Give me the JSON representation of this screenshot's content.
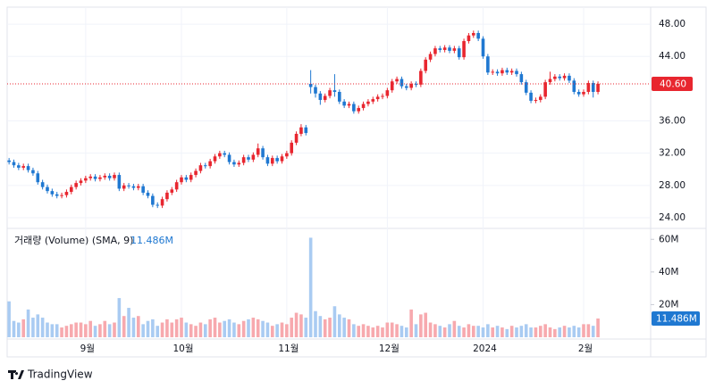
{
  "brand": "TradingView",
  "chart_data": {
    "type": "candlestick",
    "xlim": [
      -0.4,
      134
    ],
    "xticks": [
      {
        "value": 16,
        "label": "9월"
      },
      {
        "value": 36,
        "label": "10월"
      },
      {
        "value": 58,
        "label": "11월"
      },
      {
        "value": 79,
        "label": "12월"
      },
      {
        "value": 99,
        "label": "2024"
      },
      {
        "value": 120,
        "label": "2월"
      }
    ],
    "ylim": [
      22.67,
      50.11
    ],
    "yticks": [
      {
        "value": 24,
        "label": "24.00"
      },
      {
        "value": 28,
        "label": "28.00"
      },
      {
        "value": 32,
        "label": "32.00"
      },
      {
        "value": 36,
        "label": "36.00"
      },
      {
        "value": 44,
        "label": "44.00"
      },
      {
        "value": 48,
        "label": "48.00"
      }
    ],
    "up_color": "#e8262f",
    "down_color": "#1f78d1",
    "open": [
      31.1,
      30.9,
      30.5,
      30.2,
      30.4,
      29.9,
      29.5,
      28.4,
      27.8,
      27.3,
      26.9,
      26.7,
      26.8,
      27.2,
      27.8,
      28.3,
      28.6,
      28.9,
      29.1,
      28.8,
      29.0,
      29.2,
      28.9,
      29.3,
      27.6,
      28.0,
      27.9,
      27.7,
      27.9,
      27.1,
      26.7,
      25.6,
      25.5,
      26.3,
      27.1,
      27.5,
      28.4,
      29.0,
      28.7,
      29.3,
      29.8,
      30.5,
      30.4,
      31.0,
      31.6,
      32.0,
      31.8,
      30.9,
      30.6,
      30.8,
      31.5,
      31.2,
      31.8,
      32.6,
      31.5,
      30.7,
      31.4,
      31.0,
      31.6,
      32.0,
      33.3,
      34.4,
      35.2,
      40.6,
      40.2,
      39.4,
      38.6,
      39.1,
      39.8,
      39.6,
      38.4,
      37.9,
      38.1,
      37.2,
      37.6,
      38.1,
      38.4,
      38.7,
      39.0,
      39.1,
      39.8,
      40.9,
      41.2,
      40.3,
      40.1,
      40.6,
      40.5,
      42.2,
      43.6,
      44.3,
      45.0,
      44.8,
      45.1,
      44.7,
      45.0,
      43.9,
      45.9,
      46.6,
      46.9,
      46.2,
      44.0,
      42.0,
      42.1,
      41.9,
      42.3,
      42.0,
      42.2,
      41.8,
      40.8,
      39.5,
      38.5,
      38.6,
      39.0,
      40.8,
      41.2,
      41.5,
      41.3,
      41.6,
      41.0,
      39.6,
      39.3,
      39.6,
      40.7,
      39.6
    ],
    "high": [
      31.4,
      31.2,
      30.8,
      30.7,
      30.7,
      30.2,
      29.8,
      28.7,
      28.1,
      27.6,
      27.2,
      27.1,
      27.5,
      28.1,
      28.6,
      28.9,
      29.2,
      29.4,
      29.4,
      29.3,
      29.5,
      29.5,
      29.6,
      29.6,
      28.3,
      28.3,
      28.2,
      28.2,
      28.2,
      27.4,
      27.0,
      25.9,
      26.6,
      27.4,
      27.8,
      28.7,
      29.3,
      29.3,
      29.6,
      30.1,
      30.8,
      30.8,
      31.3,
      31.9,
      32.3,
      32.3,
      32.1,
      31.2,
      31.1,
      31.8,
      31.8,
      32.1,
      33.2,
      32.9,
      31.8,
      31.7,
      31.7,
      31.9,
      32.3,
      33.6,
      34.7,
      35.6,
      35.5,
      42.3,
      40.5,
      39.7,
      39.4,
      40.1,
      41.8,
      39.9,
      38.7,
      38.4,
      38.4,
      37.9,
      38.4,
      38.7,
      39.0,
      39.3,
      39.4,
      40.1,
      41.2,
      41.5,
      41.5,
      40.6,
      40.9,
      40.9,
      42.5,
      43.9,
      44.6,
      45.3,
      45.3,
      45.4,
      45.4,
      45.3,
      45.3,
      46.2,
      46.9,
      47.2,
      47.2,
      46.5,
      44.3,
      42.4,
      42.4,
      42.6,
      42.6,
      42.5,
      42.5,
      42.1,
      41.1,
      39.8,
      38.9,
      39.3,
      41.1,
      42.1,
      41.8,
      41.8,
      41.9,
      41.9,
      41.3,
      39.9,
      39.9,
      41.0,
      41.0,
      40.9
    ],
    "low": [
      30.6,
      30.2,
      29.9,
      29.9,
      29.6,
      29.2,
      28.1,
      27.5,
      27.0,
      26.6,
      26.4,
      26.4,
      26.5,
      26.9,
      27.5,
      28.0,
      28.3,
      28.6,
      28.5,
      28.5,
      28.7,
      28.6,
      28.6,
      27.3,
      27.3,
      27.6,
      27.4,
      27.4,
      26.8,
      26.4,
      25.3,
      25.2,
      25.2,
      26.0,
      26.8,
      27.2,
      28.1,
      28.4,
      28.4,
      29.0,
      29.5,
      30.1,
      30.1,
      30.7,
      31.3,
      31.5,
      30.6,
      30.3,
      30.3,
      30.5,
      30.9,
      30.9,
      31.5,
      31.2,
      30.4,
      30.4,
      30.7,
      30.7,
      31.3,
      31.7,
      33.0,
      34.1,
      34.2,
      39.4,
      38.9,
      38.0,
      38.3,
      38.8,
      39.0,
      38.1,
      37.6,
      37.6,
      36.9,
      36.9,
      37.3,
      37.8,
      38.1,
      38.4,
      38.7,
      38.8,
      39.5,
      40.6,
      40.0,
      39.8,
      39.8,
      40.2,
      40.2,
      41.9,
      43.3,
      44.0,
      44.5,
      44.5,
      44.4,
      44.4,
      43.6,
      43.6,
      45.6,
      46.3,
      45.9,
      43.7,
      41.7,
      41.7,
      41.6,
      41.6,
      41.7,
      41.7,
      41.5,
      40.5,
      39.2,
      38.2,
      38.2,
      38.3,
      38.7,
      40.5,
      40.9,
      41.0,
      41.0,
      40.7,
      39.3,
      39.0,
      39.0,
      39.3,
      38.9,
      39.3
    ],
    "close": [
      30.9,
      30.5,
      30.2,
      30.4,
      29.9,
      29.5,
      28.4,
      27.8,
      27.3,
      26.9,
      26.7,
      26.8,
      27.2,
      27.8,
      28.3,
      28.6,
      28.9,
      29.1,
      28.8,
      29.0,
      29.2,
      28.9,
      29.3,
      27.6,
      28.0,
      27.9,
      27.7,
      27.9,
      27.1,
      26.7,
      25.6,
      25.5,
      26.3,
      27.1,
      27.5,
      28.4,
      29.0,
      28.7,
      29.3,
      29.8,
      30.5,
      30.4,
      31.0,
      31.6,
      32.0,
      31.8,
      30.9,
      30.6,
      30.8,
      31.5,
      31.2,
      31.8,
      32.6,
      31.5,
      30.7,
      31.4,
      31.0,
      31.6,
      32.0,
      33.3,
      34.4,
      35.2,
      34.5,
      40.2,
      39.4,
      38.6,
      39.1,
      39.8,
      39.6,
      38.4,
      37.9,
      38.1,
      37.2,
      37.6,
      38.1,
      38.4,
      38.7,
      39.0,
      39.1,
      39.8,
      40.9,
      41.2,
      40.3,
      40.1,
      40.6,
      40.5,
      42.2,
      43.6,
      44.3,
      45.0,
      44.8,
      45.1,
      44.7,
      45.0,
      43.9,
      45.9,
      46.6,
      46.9,
      46.2,
      44.0,
      42.0,
      42.1,
      41.9,
      42.3,
      42.0,
      42.2,
      41.8,
      40.8,
      39.5,
      38.5,
      38.6,
      39.0,
      40.8,
      41.2,
      41.5,
      41.3,
      41.6,
      41.0,
      39.6,
      39.3,
      39.6,
      40.7,
      39.6,
      40.6
    ],
    "last_price": {
      "value": 40.6,
      "label": "40.60"
    },
    "volume": {
      "title": "거래량 (Volume) (SMA, 9)",
      "ylim": [
        -1.1,
        66.7
      ],
      "yticks": [
        {
          "value": 20,
          "label": "20M"
        },
        {
          "value": 40,
          "label": "40M"
        },
        {
          "value": 60,
          "label": "60M"
        }
      ],
      "up_color": "#f7a9ae",
      "down_color": "#a9cbf2",
      "values": [
        22,
        10,
        9,
        11,
        17,
        12,
        14,
        12,
        9,
        8,
        8,
        6,
        7,
        8,
        9,
        9,
        8,
        10,
        7,
        8,
        10,
        8,
        9,
        24,
        13,
        18,
        12,
        13,
        8,
        10,
        11,
        7,
        9,
        11,
        9,
        11,
        12,
        9,
        8,
        7,
        9,
        8,
        11,
        12,
        9,
        10,
        11,
        9,
        8,
        10,
        11,
        12,
        11,
        10,
        9,
        7,
        8,
        9,
        8,
        12,
        15,
        14,
        12,
        61,
        16,
        13,
        11,
        12,
        19,
        14,
        12,
        11,
        8,
        7,
        8,
        7,
        6,
        7,
        6,
        9,
        9,
        8,
        7,
        6,
        17,
        8,
        14,
        15,
        9,
        8,
        7,
        6,
        8,
        10,
        7,
        6,
        8,
        7,
        7,
        6,
        8,
        6,
        7,
        6,
        5,
        7,
        6,
        7,
        8,
        6,
        6,
        7,
        8,
        6,
        5,
        6,
        7,
        6,
        7,
        6,
        8,
        8,
        7,
        11.486
      ],
      "last": {
        "value": 11.486,
        "label": "11.486M"
      }
    }
  }
}
